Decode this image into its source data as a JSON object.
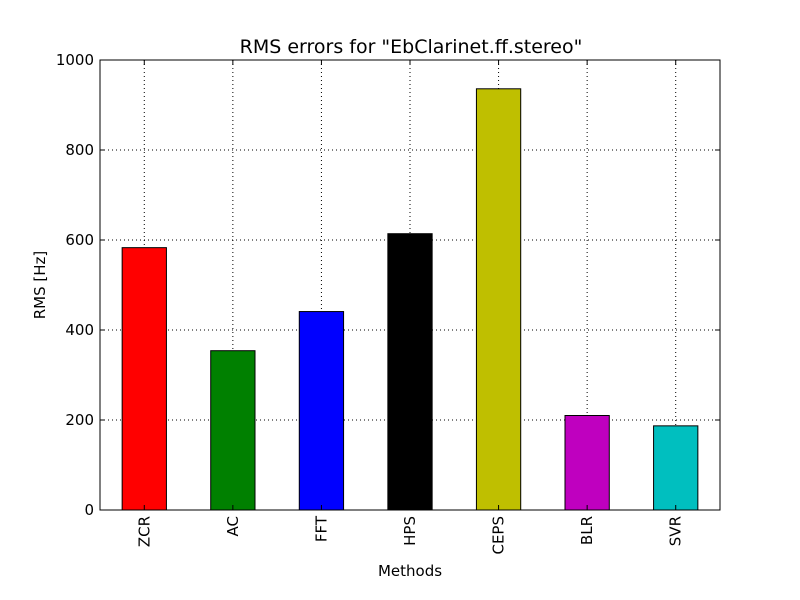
{
  "chart_data": {
    "type": "bar",
    "title": "RMS errors for \"EbClarinet.ff.stereo\"",
    "xlabel": "Methods",
    "ylabel": "RMS [Hz]",
    "categories": [
      "ZCR",
      "AC",
      "FFT",
      "HPS",
      "CEPS",
      "BLR",
      "SVR"
    ],
    "values": [
      583,
      354,
      441,
      614,
      936,
      210,
      187
    ],
    "colors": [
      "#ff0000",
      "#008000",
      "#0000ff",
      "#000000",
      "#bfbf00",
      "#bf00bf",
      "#00bfbf"
    ],
    "ylim": [
      0,
      1000
    ],
    "yticks": [
      0,
      200,
      400,
      600,
      800,
      1000
    ],
    "grid": true
  }
}
